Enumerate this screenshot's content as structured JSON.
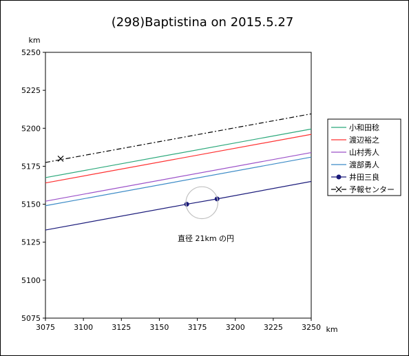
{
  "chart_data": {
    "type": "line",
    "title": "(298)Baptistina on 2015.5.27",
    "xlabel": "km",
    "ylabel": "km",
    "xlim": [
      3075,
      3250
    ],
    "ylim": [
      5075,
      5250
    ],
    "x_ticks": [
      "3075",
      "3100",
      "3125",
      "3150",
      "3175",
      "3200",
      "3225",
      "3250"
    ],
    "y_ticks": [
      "5075",
      "5100",
      "5125",
      "5150",
      "5175",
      "5200",
      "5225",
      "5250"
    ],
    "grid": false,
    "legend_position": "right",
    "series": [
      {
        "name": "小和田稔",
        "color": "#2aa87a",
        "style": "solid",
        "marker": "none",
        "x": [
          3075,
          3250
        ],
        "y": [
          5167.5,
          5199.5
        ]
      },
      {
        "name": "渡辺裕之",
        "color": "#ff3030",
        "style": "solid",
        "marker": "none",
        "x": [
          3075,
          3250
        ],
        "y": [
          5164,
          5196
        ]
      },
      {
        "name": "山村秀人",
        "color": "#9a4fc8",
        "style": "solid",
        "marker": "none",
        "x": [
          3075,
          3250
        ],
        "y": [
          5152,
          5184
        ]
      },
      {
        "name": "渡部勇人",
        "color": "#3a8ac6",
        "style": "solid",
        "marker": "none",
        "x": [
          3075,
          3250
        ],
        "y": [
          5149,
          5181
        ]
      },
      {
        "name": "井田三良",
        "color": "#1a1a7a",
        "style": "solid",
        "marker": "circle",
        "x": [
          3075,
          3168,
          3188,
          3250
        ],
        "y": [
          5133,
          5150,
          5153.5,
          5165
        ],
        "marked_points": [
          [
            3168,
            5150
          ],
          [
            3188,
            5153.5
          ]
        ]
      },
      {
        "name": "予報センター",
        "color": "#000000",
        "style": "dashdot",
        "marker": "x",
        "x": [
          3075,
          3250
        ],
        "y": [
          5177.5,
          5209.5
        ],
        "marked_points": [
          [
            3085,
            5180
          ]
        ]
      }
    ],
    "circle": {
      "cx": 3178,
      "cy": 5151,
      "diameter": 21,
      "color": "#c0c0c0"
    },
    "annotation": "直径 21km の円"
  }
}
